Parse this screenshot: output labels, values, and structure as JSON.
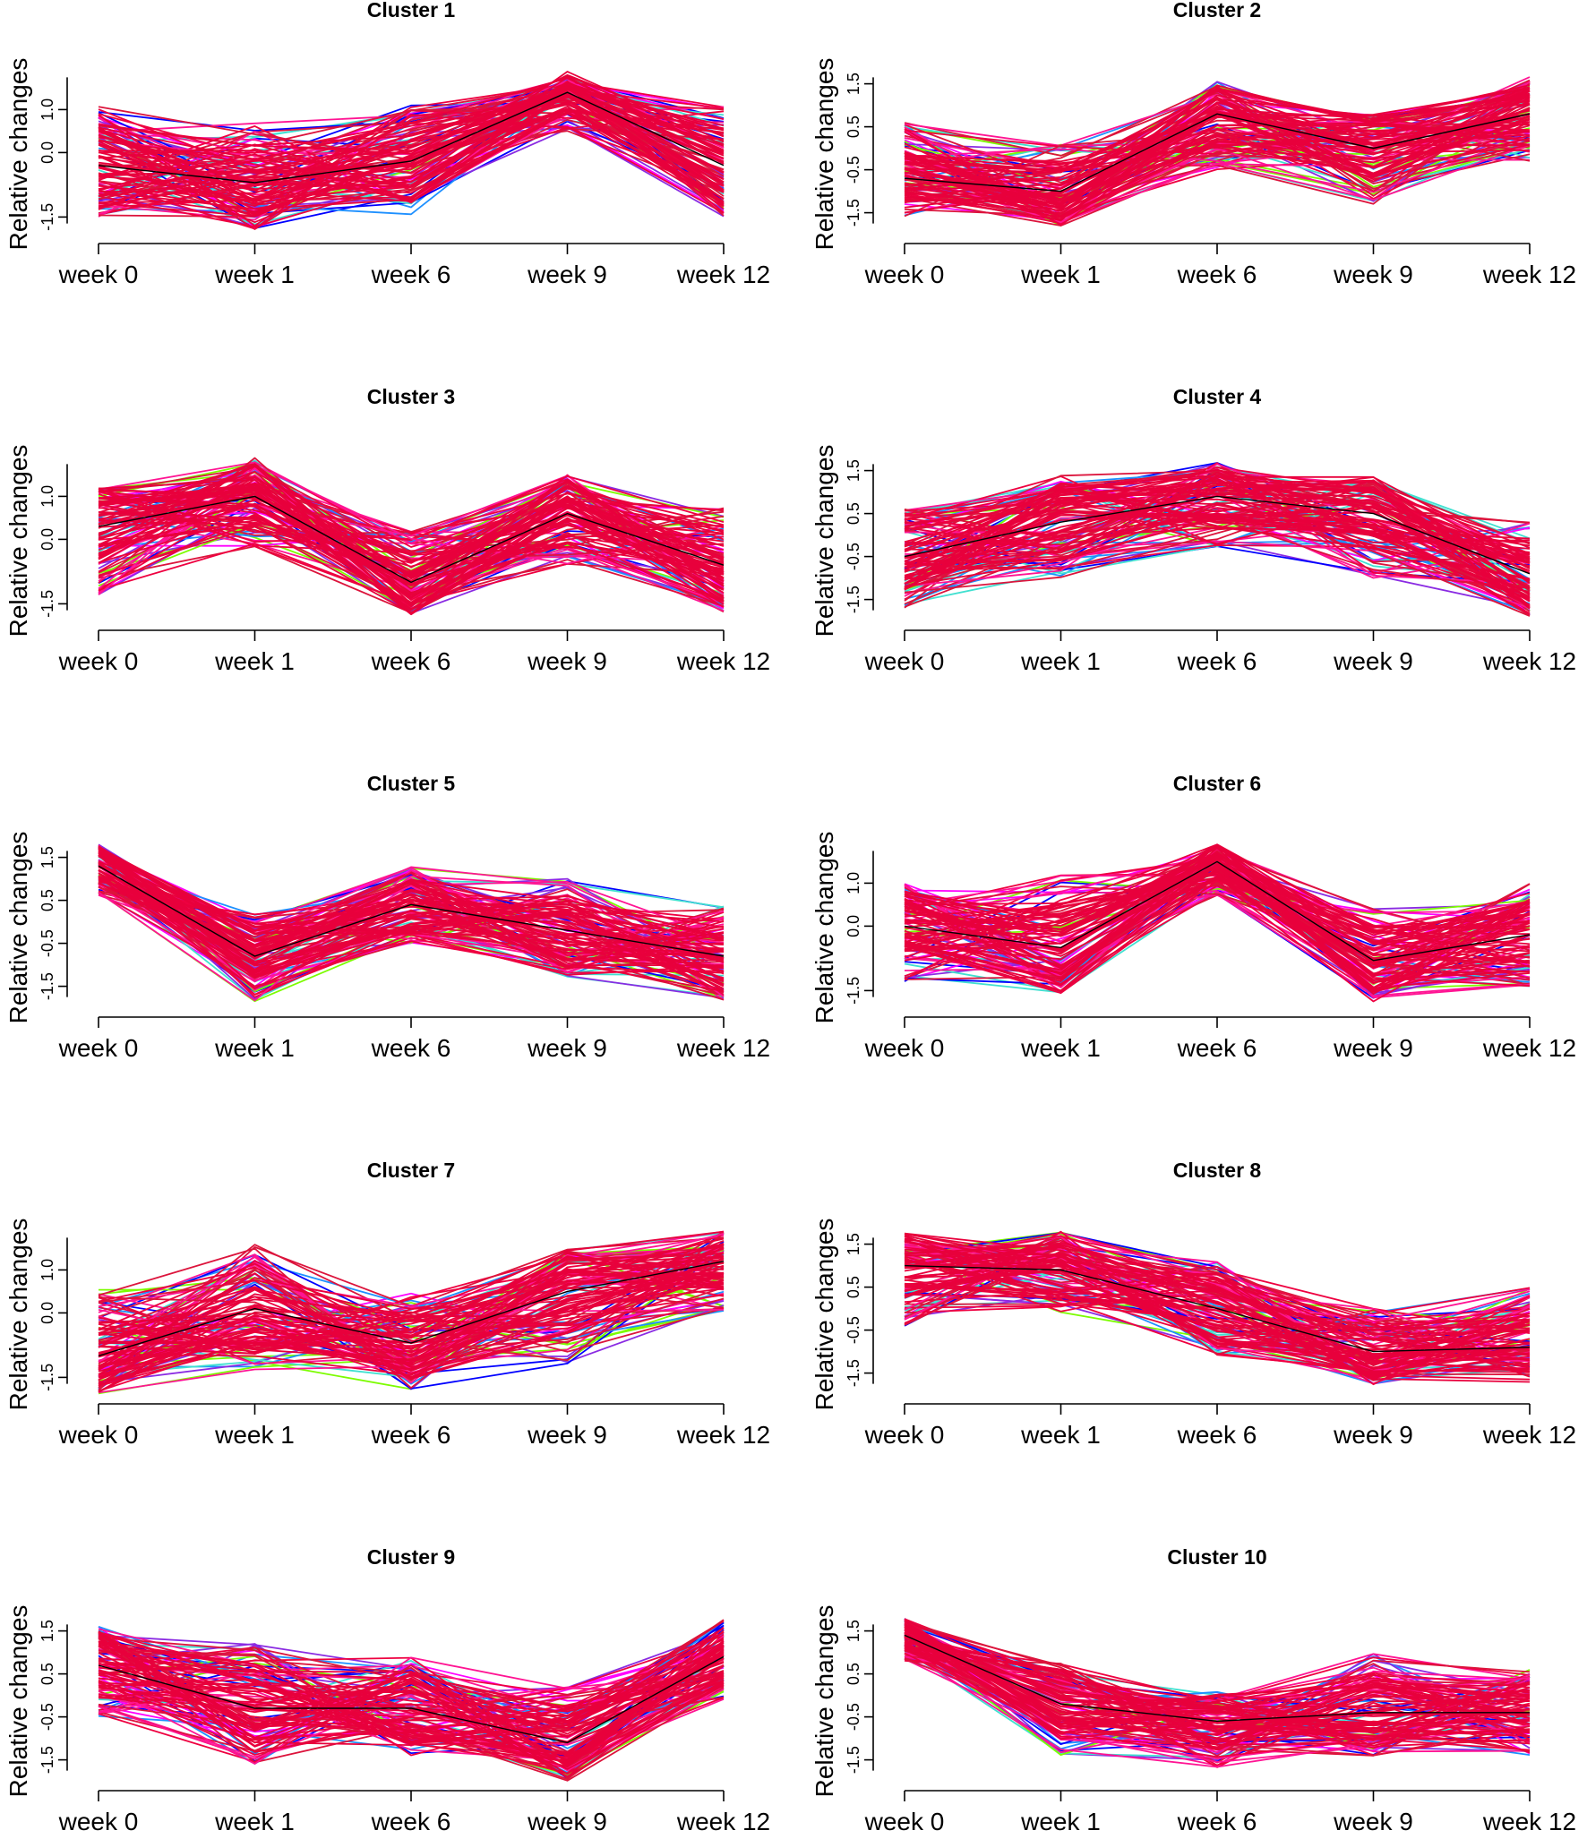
{
  "chart_data": [
    {
      "type": "line",
      "title": "Cluster 1",
      "ylabel": "Relative changes",
      "categories": [
        "week 0",
        "week 1",
        "week 6",
        "week 9",
        "week 12"
      ],
      "yticks": [
        "-1.5",
        "0.0",
        "1.0"
      ],
      "ylim": [
        -1.7,
        1.8
      ],
      "series": [
        {
          "name": "centroid",
          "values": [
            -0.3,
            -0.7,
            -0.2,
            1.4,
            -0.3
          ]
        }
      ],
      "band": {
        "min": [
          -1.5,
          -1.8,
          -1.5,
          0.5,
          -1.5
        ],
        "max": [
          1.2,
          0.7,
          1.1,
          1.8,
          1.1
        ]
      },
      "line_colors": [
        "#7cfc00",
        "#40e0d0",
        "#1e90ff",
        "#0000ff",
        "#8a2be2",
        "#ff00ff",
        "#ff1493",
        "#ee0040",
        "#dc143c"
      ],
      "centroid_color": "#000000"
    },
    {
      "type": "line",
      "title": "Cluster 2",
      "ylabel": "Relative changes",
      "categories": [
        "week 0",
        "week 1",
        "week 6",
        "week 9",
        "week 12"
      ],
      "yticks": [
        "-1.5",
        "-0.5",
        "0.5",
        "1.5"
      ],
      "ylim": [
        -1.8,
        1.7
      ],
      "series": [
        {
          "name": "centroid",
          "values": [
            -0.7,
            -1.0,
            0.8,
            0.0,
            0.8
          ]
        }
      ],
      "band": {
        "min": [
          -1.6,
          -1.8,
          -0.5,
          -1.3,
          -0.3
        ],
        "max": [
          0.6,
          0.1,
          1.6,
          0.8,
          1.7
        ]
      },
      "line_colors": [
        "#7cfc00",
        "#40e0d0",
        "#1e90ff",
        "#0000ff",
        "#8a2be2",
        "#ff00ff",
        "#ff1493",
        "#ee0040",
        "#dc143c"
      ],
      "centroid_color": "#000000"
    },
    {
      "type": "line",
      "title": "Cluster 3",
      "ylabel": "Relative changes",
      "categories": [
        "week 0",
        "week 1",
        "week 6",
        "week 9",
        "week 12"
      ],
      "yticks": [
        "-1.5",
        "0.0",
        "1.0"
      ],
      "ylim": [
        -1.7,
        1.8
      ],
      "series": [
        {
          "name": "centroid",
          "values": [
            0.3,
            1.0,
            -1.0,
            0.6,
            -0.6
          ]
        }
      ],
      "band": {
        "min": [
          -1.3,
          -0.2,
          -1.8,
          -0.6,
          -1.7
        ],
        "max": [
          1.2,
          1.9,
          0.2,
          1.5,
          0.8
        ]
      },
      "line_colors": [
        "#7cfc00",
        "#40e0d0",
        "#1e90ff",
        "#0000ff",
        "#8a2be2",
        "#ff00ff",
        "#ff1493",
        "#ee0040",
        "#dc143c"
      ],
      "centroid_color": "#000000"
    },
    {
      "type": "line",
      "title": "Cluster 4",
      "ylabel": "Relative changes",
      "categories": [
        "week 0",
        "week 1",
        "week 6",
        "week 9",
        "week 12"
      ],
      "yticks": [
        "-1.5",
        "-0.5",
        "0.5",
        "1.5"
      ],
      "ylim": [
        -1.8,
        1.7
      ],
      "series": [
        {
          "name": "centroid",
          "values": [
            -0.5,
            0.3,
            0.9,
            0.5,
            -0.9
          ]
        }
      ],
      "band": {
        "min": [
          -1.7,
          -1.0,
          -0.3,
          -1.0,
          -1.9
        ],
        "max": [
          0.6,
          1.4,
          1.7,
          1.3,
          0.3
        ]
      },
      "line_colors": [
        "#7cfc00",
        "#40e0d0",
        "#1e90ff",
        "#0000ff",
        "#8a2be2",
        "#ff00ff",
        "#ff1493",
        "#ee0040",
        "#dc143c"
      ],
      "centroid_color": "#000000"
    },
    {
      "type": "line",
      "title": "Cluster 5",
      "ylabel": "Relative changes",
      "categories": [
        "week 0",
        "week 1",
        "week 6",
        "week 9",
        "week 12"
      ],
      "yticks": [
        "-1.5",
        "-0.5",
        "0.5",
        "1.5"
      ],
      "ylim": [
        -1.8,
        1.7
      ],
      "series": [
        {
          "name": "centroid",
          "values": [
            1.3,
            -0.8,
            0.4,
            -0.2,
            -0.8
          ]
        }
      ],
      "band": {
        "min": [
          0.6,
          -1.9,
          -0.5,
          -1.3,
          -1.9
        ],
        "max": [
          1.8,
          0.2,
          1.3,
          1.0,
          0.4
        ]
      },
      "line_colors": [
        "#7cfc00",
        "#40e0d0",
        "#1e90ff",
        "#0000ff",
        "#8a2be2",
        "#ff00ff",
        "#ff1493",
        "#ee0040",
        "#dc143c"
      ],
      "centroid_color": "#000000"
    },
    {
      "type": "line",
      "title": "Cluster 6",
      "ylabel": "Relative changes",
      "categories": [
        "week 0",
        "week 1",
        "week 6",
        "week 9",
        "week 12"
      ],
      "yticks": [
        "-1.5",
        "0.0",
        "1.0"
      ],
      "ylim": [
        -1.7,
        1.8
      ],
      "series": [
        {
          "name": "centroid",
          "values": [
            0.0,
            -0.5,
            1.5,
            -0.8,
            -0.2
          ]
        }
      ],
      "band": {
        "min": [
          -1.3,
          -1.6,
          0.7,
          -1.8,
          -1.4
        ],
        "max": [
          1.0,
          1.2,
          1.8,
          0.4,
          1.0
        ]
      },
      "line_colors": [
        "#7cfc00",
        "#40e0d0",
        "#1e90ff",
        "#0000ff",
        "#8a2be2",
        "#ff00ff",
        "#ff1493",
        "#ee0040",
        "#dc143c"
      ],
      "centroid_color": "#000000"
    },
    {
      "type": "line",
      "title": "Cluster 7",
      "ylabel": "Relative changes",
      "categories": [
        "week 0",
        "week 1",
        "week 6",
        "week 9",
        "week 12"
      ],
      "yticks": [
        "-1.5",
        "0.0",
        "1.0"
      ],
      "ylim": [
        -1.7,
        1.8
      ],
      "series": [
        {
          "name": "centroid",
          "values": [
            -1.0,
            0.1,
            -0.7,
            0.5,
            1.2
          ]
        }
      ],
      "band": {
        "min": [
          -1.9,
          -1.4,
          -1.8,
          -1.2,
          0.0
        ],
        "max": [
          0.6,
          1.6,
          0.5,
          1.5,
          1.9
        ]
      },
      "line_colors": [
        "#7cfc00",
        "#40e0d0",
        "#1e90ff",
        "#0000ff",
        "#8a2be2",
        "#ff00ff",
        "#ff1493",
        "#ee0040",
        "#dc143c"
      ],
      "centroid_color": "#000000"
    },
    {
      "type": "line",
      "title": "Cluster 8",
      "ylabel": "Relative changes",
      "categories": [
        "week 0",
        "week 1",
        "week 6",
        "week 9",
        "week 12"
      ],
      "yticks": [
        "-1.5",
        "-0.5",
        "0.5",
        "1.5"
      ],
      "ylim": [
        -1.8,
        1.7
      ],
      "series": [
        {
          "name": "centroid",
          "values": [
            1.0,
            0.9,
            0.0,
            -1.0,
            -0.9
          ]
        }
      ],
      "band": {
        "min": [
          -0.4,
          -0.1,
          -1.1,
          -1.8,
          -1.7
        ],
        "max": [
          1.6,
          1.8,
          1.1,
          0.0,
          0.5
        ]
      },
      "line_colors": [
        "#7cfc00",
        "#40e0d0",
        "#1e90ff",
        "#0000ff",
        "#8a2be2",
        "#ff00ff",
        "#ff1493",
        "#ee0040",
        "#dc143c"
      ],
      "centroid_color": "#000000"
    },
    {
      "type": "line",
      "title": "Cluster 9",
      "ylabel": "Relative changes",
      "categories": [
        "week 0",
        "week 1",
        "week 6",
        "week 9",
        "week 12"
      ],
      "yticks": [
        "-1.5",
        "-0.5",
        "0.5",
        "1.5"
      ],
      "ylim": [
        -1.8,
        1.7
      ],
      "series": [
        {
          "name": "centroid",
          "values": [
            0.7,
            -0.3,
            -0.3,
            -1.1,
            0.9
          ]
        }
      ],
      "band": {
        "min": [
          -0.5,
          -1.6,
          -1.4,
          -2.0,
          -0.1
        ],
        "max": [
          1.6,
          1.2,
          0.9,
          0.2,
          1.8
        ]
      },
      "line_colors": [
        "#7cfc00",
        "#40e0d0",
        "#1e90ff",
        "#0000ff",
        "#8a2be2",
        "#ff00ff",
        "#ff1493",
        "#ee0040",
        "#dc143c"
      ],
      "centroid_color": "#000000"
    },
    {
      "type": "line",
      "title": "Cluster 10",
      "ylabel": "Relative changes",
      "categories": [
        "week 0",
        "week 1",
        "week 6",
        "week 9",
        "week 12"
      ],
      "yticks": [
        "-1.5",
        "-0.5",
        "0.5",
        "1.5"
      ],
      "ylim": [
        -1.8,
        1.7
      ],
      "series": [
        {
          "name": "centroid",
          "values": [
            1.4,
            -0.2,
            -0.6,
            -0.4,
            -0.4
          ]
        }
      ],
      "band": {
        "min": [
          0.8,
          -1.4,
          -1.7,
          -1.4,
          -1.4
        ],
        "max": [
          1.8,
          0.8,
          0.1,
          1.0,
          0.6
        ]
      },
      "line_colors": [
        "#7cfc00",
        "#40e0d0",
        "#1e90ff",
        "#0000ff",
        "#8a2be2",
        "#ff00ff",
        "#ff1493",
        "#ee0040",
        "#dc143c"
      ],
      "centroid_color": "#000000"
    }
  ]
}
